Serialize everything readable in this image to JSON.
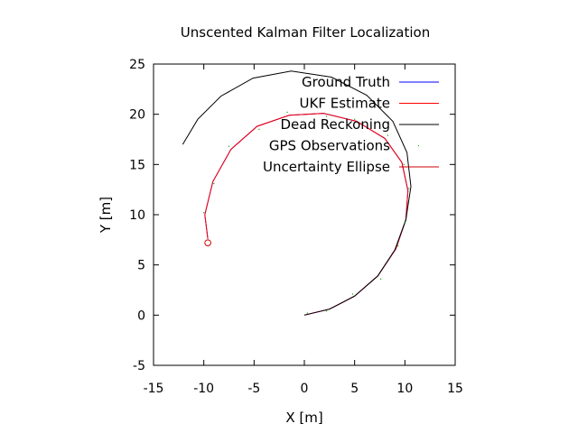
{
  "chart_data": {
    "type": "line",
    "title": "Unscented Kalman Filter Localization",
    "xlabel": "X [m]",
    "ylabel": "Y [m]",
    "xlim": [
      -15,
      15
    ],
    "ylim": [
      -5,
      25
    ],
    "xticks": [
      -15,
      -10,
      -5,
      0,
      5,
      10,
      15
    ],
    "yticks": [
      -5,
      0,
      5,
      10,
      15,
      20,
      25
    ],
    "legend_position": "top-right",
    "series": [
      {
        "name": "Ground Truth",
        "color": "#0000ff",
        "style": "line",
        "x": [
          0.0,
          2.5,
          5.0,
          7.3,
          9.1,
          10.1,
          10.3,
          9.7,
          8.0,
          5.2,
          1.9,
          -1.5,
          -4.7,
          -7.3,
          -9.1,
          -9.9,
          -9.6
        ],
        "y": [
          0.0,
          0.6,
          1.9,
          3.9,
          6.6,
          9.5,
          12.4,
          15.2,
          17.6,
          19.3,
          20.1,
          19.9,
          18.8,
          16.5,
          13.3,
          10.0,
          7.6
        ]
      },
      {
        "name": "UKF Estimate",
        "color": "#ff0000",
        "style": "line",
        "x": [
          0.0,
          2.5,
          5.0,
          7.3,
          9.1,
          10.1,
          10.3,
          9.7,
          8.0,
          5.2,
          1.9,
          -1.5,
          -4.7,
          -7.3,
          -9.1,
          -9.9,
          -9.6
        ],
        "y": [
          0.0,
          0.6,
          1.9,
          3.9,
          6.6,
          9.5,
          12.4,
          15.2,
          17.6,
          19.3,
          20.1,
          19.9,
          18.8,
          16.5,
          13.3,
          10.0,
          7.6
        ]
      },
      {
        "name": "Dead Reckoning",
        "color": "#000000",
        "style": "line",
        "x": [
          0.0,
          2.5,
          5.0,
          7.3,
          9.0,
          10.1,
          10.6,
          10.2,
          8.8,
          6.2,
          2.7,
          -1.3,
          -5.1,
          -8.3,
          -10.6,
          -12.1
        ],
        "y": [
          0.0,
          0.6,
          1.9,
          3.9,
          6.5,
          9.5,
          12.8,
          16.2,
          19.3,
          21.9,
          23.7,
          24.3,
          23.6,
          21.8,
          19.5,
          17.0
        ]
      },
      {
        "name": "GPS Observations",
        "color": "#00aa00",
        "style": "points",
        "x": [
          0.3,
          2.2,
          4.8,
          7.6,
          9.3,
          10.0,
          10.4,
          9.9,
          8.3,
          5.0,
          2.2,
          -1.7,
          -4.5,
          -7.5,
          -9.0,
          -10.0
        ],
        "y": [
          0.2,
          0.4,
          2.1,
          3.6,
          6.9,
          9.2,
          12.6,
          15.0,
          17.9,
          19.5,
          19.8,
          20.2,
          18.5,
          16.8,
          13.1,
          10.2
        ]
      },
      {
        "name": "Uncertainty Ellipse",
        "color": "#cc0000",
        "style": "ellipse",
        "center": [
          -9.6,
          7.2
        ],
        "radius": 0.3
      }
    ]
  }
}
